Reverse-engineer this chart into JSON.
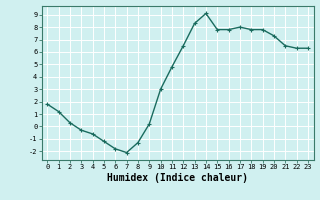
{
  "x": [
    0,
    1,
    2,
    3,
    4,
    5,
    6,
    7,
    8,
    9,
    10,
    11,
    12,
    13,
    14,
    15,
    16,
    17,
    18,
    19,
    20,
    21,
    22,
    23
  ],
  "y": [
    1.8,
    1.2,
    0.3,
    -0.3,
    -0.6,
    -1.2,
    -1.8,
    -2.1,
    -1.3,
    0.2,
    3.0,
    4.8,
    6.5,
    8.3,
    9.1,
    7.8,
    7.8,
    8.0,
    7.8,
    7.8,
    7.3,
    6.5,
    6.3,
    6.3
  ],
  "line_color": "#1a6b5e",
  "marker": "+",
  "marker_size": 3,
  "linewidth": 1.0,
  "xlabel": "Humidex (Indice chaleur)",
  "xlim": [
    -0.5,
    23.5
  ],
  "ylim": [
    -2.7,
    9.7
  ],
  "xticks": [
    0,
    1,
    2,
    3,
    4,
    5,
    6,
    7,
    8,
    9,
    10,
    11,
    12,
    13,
    14,
    15,
    16,
    17,
    18,
    19,
    20,
    21,
    22,
    23
  ],
  "yticks": [
    -2,
    -1,
    0,
    1,
    2,
    3,
    4,
    5,
    6,
    7,
    8,
    9
  ],
  "bg_color": "#d0f0f0",
  "grid_color": "#ffffff",
  "grid_linewidth": 0.7,
  "tick_fontsize": 5.0,
  "xlabel_fontsize": 7.0,
  "axis_color": "#3a7a6a",
  "spine_color": "#3a7a6a"
}
